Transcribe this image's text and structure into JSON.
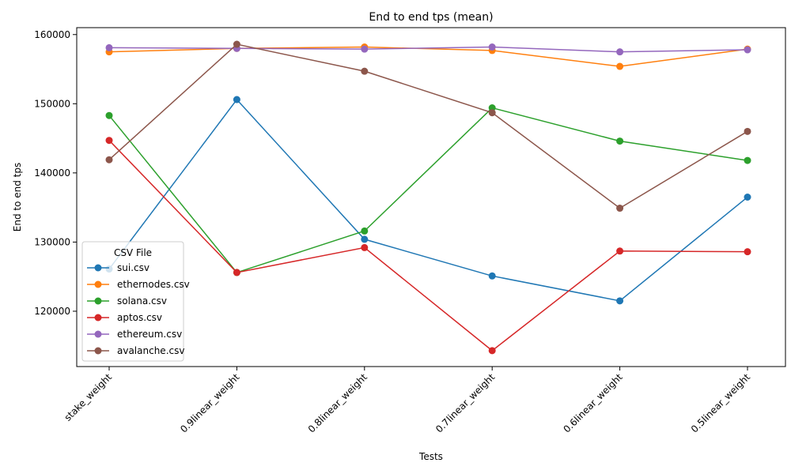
{
  "chart_data": {
    "type": "line",
    "title": "End to end tps (mean)",
    "xlabel": "Tests",
    "ylabel": "End to end tps",
    "categories": [
      "stake_weight",
      "0.9linear_weight",
      "0.8linear_weight",
      "0.7linear_weight",
      "0.6linear_weight",
      "0.5linear_weight"
    ],
    "ylim": [
      112000,
      161000
    ],
    "yticks": [
      120000,
      130000,
      140000,
      150000,
      160000
    ],
    "grid": false,
    "legend": {
      "title": "CSV File",
      "placement": "lower-left"
    },
    "series": [
      {
        "name": "sui.csv",
        "color": "#1f77b4",
        "values": [
          126100,
          150600,
          130400,
          125100,
          121500,
          136500
        ]
      },
      {
        "name": "ethernodes.csv",
        "color": "#ff7f0e",
        "values": [
          157500,
          158000,
          158200,
          157700,
          155400,
          157900
        ]
      },
      {
        "name": "solana.csv",
        "color": "#2ca02c",
        "values": [
          148300,
          125600,
          131600,
          149400,
          144600,
          141800
        ]
      },
      {
        "name": "aptos.csv",
        "color": "#d62728",
        "values": [
          144700,
          125600,
          129200,
          114300,
          128700,
          128600
        ]
      },
      {
        "name": "ethereum.csv",
        "color": "#9467bd",
        "values": [
          158100,
          158000,
          157900,
          158200,
          157500,
          157800
        ]
      },
      {
        "name": "avalanche.csv",
        "color": "#8c564b",
        "values": [
          141900,
          158600,
          154700,
          148700,
          134900,
          146000
        ]
      }
    ]
  }
}
